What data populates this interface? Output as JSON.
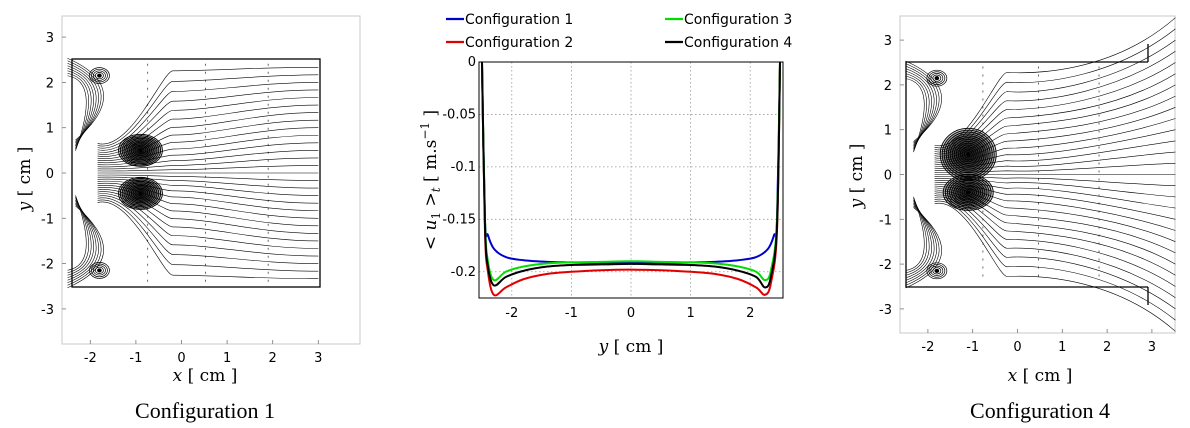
{
  "chart_data": [
    {
      "type": "streamline",
      "caption": "Configuration 1",
      "xlabel_var": "x",
      "ylabel_var": "y",
      "unit": "cm",
      "xticks": [
        "-2",
        "-1",
        "0",
        "1",
        "2",
        "3"
      ],
      "yticks": [
        "3",
        "2",
        "1",
        "0",
        "-1",
        "-2",
        "-3"
      ],
      "xlim": [
        -2.5,
        3.3
      ],
      "ylim": [
        -3.4,
        3.4
      ],
      "channel": {
        "x": [
          -2.5,
          3.0
        ],
        "y": [
          -2.5,
          2.5
        ]
      }
    },
    {
      "type": "line",
      "ylabel": "< u1 >t [ m.s-1 ]",
      "xlabel_var": "y",
      "unit": "cm",
      "xlim": [
        -2.55,
        2.55
      ],
      "ylim": [
        -0.225,
        0
      ],
      "xticks": [
        "-2",
        "-1",
        "0",
        "1",
        "2"
      ],
      "yticks": [
        "0",
        "-0.05",
        "-0.1",
        "-0.15",
        "-0.2"
      ],
      "grid": true,
      "legend_position": "top",
      "series": [
        {
          "name": "Configuration 1",
          "color": "#0000cc",
          "x": [
            -2.5,
            -2.45,
            -2.4,
            -2.3,
            -2.1,
            -1.8,
            -1.4,
            -1.0,
            -0.5,
            0,
            0.5,
            1.0,
            1.4,
            1.8,
            2.1,
            2.3,
            2.4,
            2.45,
            2.5
          ],
          "y": [
            0,
            -0.15,
            -0.165,
            -0.178,
            -0.186,
            -0.189,
            -0.1905,
            -0.191,
            -0.1915,
            -0.1915,
            -0.1915,
            -0.191,
            -0.1905,
            -0.189,
            -0.186,
            -0.178,
            -0.165,
            -0.15,
            0
          ]
        },
        {
          "name": "Configuration 2",
          "color": "#e00000",
          "x": [
            -2.5,
            -2.45,
            -2.4,
            -2.3,
            -2.1,
            -1.8,
            -1.4,
            -1.0,
            -0.5,
            0,
            0.5,
            1.0,
            1.4,
            1.8,
            2.1,
            2.25,
            2.35,
            2.45,
            2.5
          ],
          "y": [
            0,
            -0.16,
            -0.2,
            -0.222,
            -0.215,
            -0.207,
            -0.202,
            -0.2,
            -0.1985,
            -0.198,
            -0.1985,
            -0.2,
            -0.202,
            -0.207,
            -0.215,
            -0.222,
            -0.21,
            -0.16,
            0
          ]
        },
        {
          "name": "Configuration 3",
          "color": "#00dd00",
          "x": [
            -2.5,
            -2.45,
            -2.4,
            -2.3,
            -2.1,
            -1.8,
            -1.4,
            -1.0,
            -0.5,
            0,
            0.5,
            1.0,
            1.4,
            1.8,
            2.1,
            2.25,
            2.35,
            2.45,
            2.5
          ],
          "y": [
            0,
            -0.15,
            -0.19,
            -0.208,
            -0.2,
            -0.195,
            -0.192,
            -0.191,
            -0.1905,
            -0.19,
            -0.1905,
            -0.191,
            -0.192,
            -0.195,
            -0.2,
            -0.208,
            -0.198,
            -0.15,
            0
          ]
        },
        {
          "name": "Configuration 4",
          "color": "#000000",
          "x": [
            -2.5,
            -2.45,
            -2.4,
            -2.3,
            -2.1,
            -1.8,
            -1.4,
            -1.0,
            -0.5,
            0,
            0.5,
            1.0,
            1.4,
            1.8,
            2.1,
            2.25,
            2.35,
            2.45,
            2.5
          ],
          "y": [
            0,
            -0.155,
            -0.195,
            -0.213,
            -0.205,
            -0.199,
            -0.195,
            -0.1935,
            -0.193,
            -0.1925,
            -0.193,
            -0.1935,
            -0.195,
            -0.199,
            -0.205,
            -0.215,
            -0.204,
            -0.155,
            0
          ]
        }
      ]
    },
    {
      "type": "streamline",
      "caption": "Configuration 4",
      "xlabel_var": "x",
      "ylabel_var": "y",
      "unit": "cm",
      "xticks": [
        "-2",
        "-1",
        "0",
        "1",
        "2",
        "3"
      ],
      "yticks": [
        "3",
        "2",
        "1",
        "0",
        "-1",
        "-2",
        "-3"
      ],
      "xlim": [
        -2.5,
        3.3
      ],
      "ylim": [
        -3.4,
        3.4
      ],
      "channel": {
        "x": [
          -2.5,
          2.9
        ],
        "y": [
          -2.5,
          2.5
        ]
      }
    }
  ]
}
